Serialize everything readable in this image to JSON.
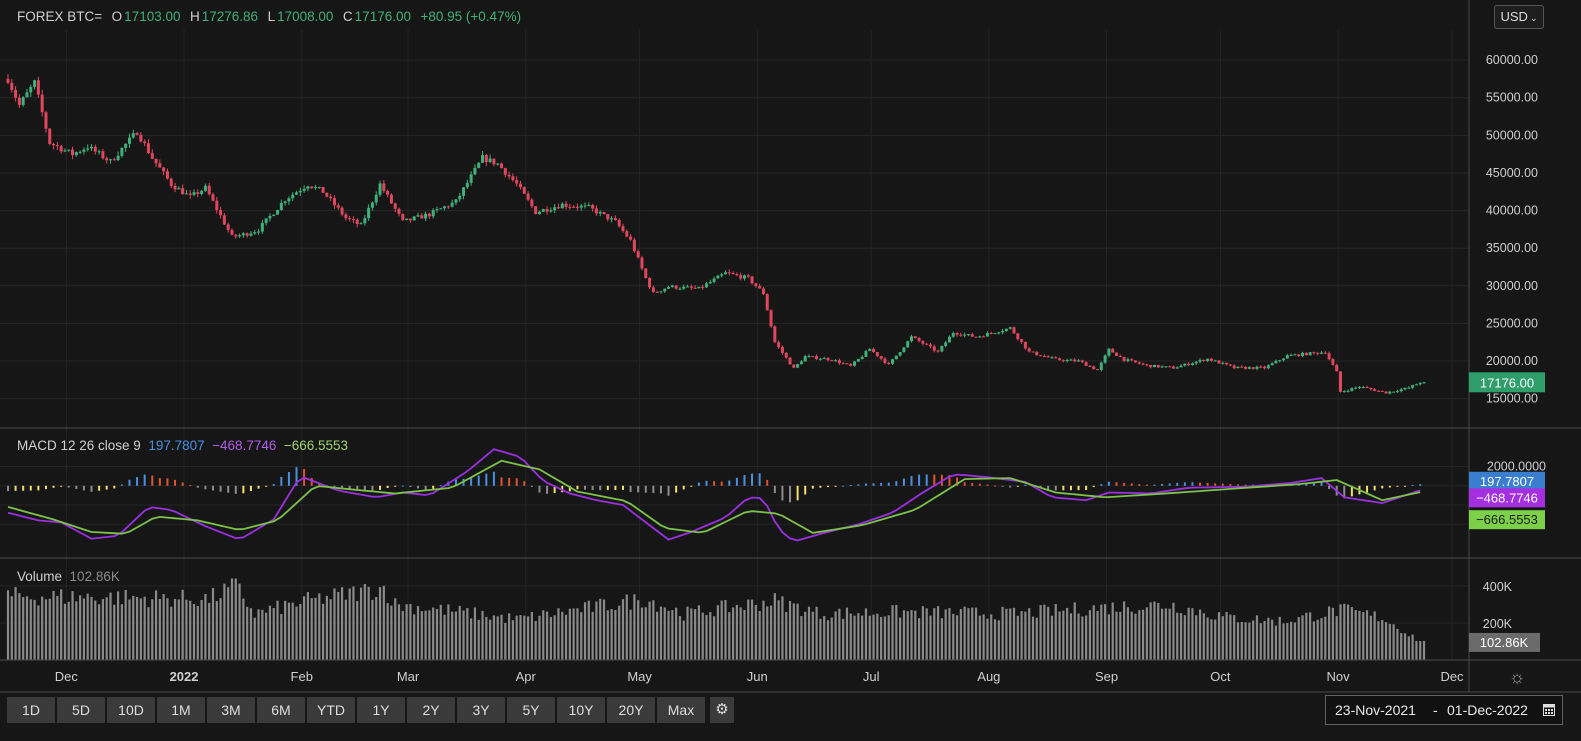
{
  "header": {
    "symbol": "FOREX BTC=",
    "o_label": "O",
    "o_value": "17103.00",
    "h_label": "H",
    "h_value": "17276.86",
    "l_label": "L",
    "l_value": "17008.00",
    "c_label": "C",
    "c_value": "17176.00",
    "change": "+80.95 (+0.47%)"
  },
  "currency_select": "USD",
  "macd": {
    "label": "MACD 12 26 close 9",
    "histogram": "197.7807",
    "macd_line": "−468.7746",
    "signal": "−666.5553"
  },
  "volume": {
    "label": "Volume",
    "value": "102.86K"
  },
  "colors": {
    "background": "#161616",
    "up": "#3fb07a",
    "down": "#e0475f",
    "macd_line": "#9b30e0",
    "signal_line": "#7cc24a",
    "hist_blue": "#4a90e2",
    "hist_red": "#e0542e",
    "hist_yellow": "#f3df6b",
    "hist_grey": "#8c8c8c",
    "volume_bar": "#8a8a8a"
  },
  "periods": [
    "1D",
    "5D",
    "10D",
    "1M",
    "3M",
    "6M",
    "YTD",
    "1Y",
    "2Y",
    "3Y",
    "5Y",
    "10Y",
    "20Y",
    "Max"
  ],
  "date_range": {
    "from": "23-Nov-2021",
    "sep": "-",
    "to": "01-Dec-2022"
  },
  "icons": {
    "settings": "gear-icon",
    "calendar": "calendar-icon",
    "chart_settings": "gear-icon"
  },
  "chart_data": [
    {
      "type": "candlestick",
      "title": "FOREX BTC=",
      "x_range": [
        "2021-11-23",
        "2022-12-01"
      ],
      "x_ticks": [
        "Dec",
        "2022",
        "Feb",
        "Mar",
        "Apr",
        "May",
        "Jun",
        "Jul",
        "Aug",
        "Sep",
        "Oct",
        "Nov",
        "Dec"
      ],
      "y_ticks": [
        "60000.00",
        "55000.00",
        "50000.00",
        "45000.00",
        "40000.00",
        "35000.00",
        "30000.00",
        "25000.00",
        "20000.00",
        "15000.00"
      ],
      "y_range": [
        11500,
        64000
      ],
      "last_price_label": "17176.00",
      "close_path": [
        [
          "2021-11-23",
          57500
        ],
        [
          "2021-11-26",
          54000
        ],
        [
          "2021-11-30",
          57000
        ],
        [
          "2021-12-04",
          49000
        ],
        [
          "2021-12-10",
          47500
        ],
        [
          "2021-12-14",
          48500
        ],
        [
          "2021-12-20",
          46500
        ],
        [
          "2021-12-27",
          50500
        ],
        [
          "2021-12-31",
          47000
        ],
        [
          "2022-01-05",
          43500
        ],
        [
          "2022-01-10",
          41800
        ],
        [
          "2022-01-14",
          43000
        ],
        [
          "2022-01-21",
          36500
        ],
        [
          "2022-01-24",
          36800
        ],
        [
          "2022-01-28",
          37500
        ],
        [
          "2022-02-04",
          41500
        ],
        [
          "2022-02-10",
          43500
        ],
        [
          "2022-02-14",
          42500
        ],
        [
          "2022-02-20",
          39000
        ],
        [
          "2022-02-24",
          38000
        ],
        [
          "2022-03-01",
          43500
        ],
        [
          "2022-03-07",
          38500
        ],
        [
          "2022-03-14",
          39500
        ],
        [
          "2022-03-21",
          41200
        ],
        [
          "2022-03-28",
          47000
        ],
        [
          "2022-04-01",
          46200
        ],
        [
          "2022-04-06",
          43500
        ],
        [
          "2022-04-11",
          39800
        ],
        [
          "2022-04-18",
          40800
        ],
        [
          "2022-04-25",
          40400
        ],
        [
          "2022-05-02",
          38500
        ],
        [
          "2022-05-06",
          36000
        ],
        [
          "2022-05-10",
          31000
        ],
        [
          "2022-05-12",
          29000
        ],
        [
          "2022-05-16",
          29900
        ],
        [
          "2022-05-24",
          29600
        ],
        [
          "2022-05-31",
          31700
        ],
        [
          "2022-06-06",
          31000
        ],
        [
          "2022-06-10",
          29000
        ],
        [
          "2022-06-13",
          22500
        ],
        [
          "2022-06-18",
          19000
        ],
        [
          "2022-06-21",
          20600
        ],
        [
          "2022-06-28",
          20200
        ],
        [
          "2022-07-03",
          19300
        ],
        [
          "2022-07-08",
          21600
        ],
        [
          "2022-07-13",
          19500
        ],
        [
          "2022-07-19",
          23200
        ],
        [
          "2022-07-26",
          21200
        ],
        [
          "2022-07-30",
          23800
        ],
        [
          "2022-08-05",
          23200
        ],
        [
          "2022-08-14",
          24400
        ],
        [
          "2022-08-19",
          21200
        ],
        [
          "2022-08-26",
          20200
        ],
        [
          "2022-09-01",
          20000
        ],
        [
          "2022-09-06",
          18800
        ],
        [
          "2022-09-09",
          21500
        ],
        [
          "2022-09-13",
          20200
        ],
        [
          "2022-09-19",
          19400
        ],
        [
          "2022-09-26",
          19100
        ],
        [
          "2022-10-05",
          20300
        ],
        [
          "2022-10-12",
          19100
        ],
        [
          "2022-10-20",
          19100
        ],
        [
          "2022-10-26",
          20700
        ],
        [
          "2022-11-05",
          21200
        ],
        [
          "2022-11-08",
          18500
        ],
        [
          "2022-11-09",
          15900
        ],
        [
          "2022-11-14",
          16600
        ],
        [
          "2022-11-21",
          15800
        ],
        [
          "2022-11-27",
          16450
        ],
        [
          "2022-11-30",
          17176
        ]
      ]
    },
    {
      "type": "line",
      "title": "MACD 12 26 close 9",
      "y_ticks": [
        "2000.0000"
      ],
      "y_range": [
        -7300,
        5800
      ],
      "series": [
        {
          "name": "MACD",
          "last": -468.7746,
          "values": [
            [
              "2021-11-23",
              -2800
            ],
            [
              "2021-12-01",
              -3600
            ],
            [
              "2021-12-07",
              -3800
            ],
            [
              "2021-12-15",
              -5500
            ],
            [
              "2021-12-22",
              -5200
            ],
            [
              "2021-12-30",
              -2200
            ],
            [
              "2022-01-05",
              -2500
            ],
            [
              "2022-01-14",
              -4200
            ],
            [
              "2022-01-23",
              -5600
            ],
            [
              "2022-02-01",
              -3500
            ],
            [
              "2022-02-08",
              1000
            ],
            [
              "2022-02-18",
              -500
            ],
            [
              "2022-02-28",
              -1200
            ],
            [
              "2022-03-07",
              -700
            ],
            [
              "2022-03-14",
              -1000
            ],
            [
              "2022-03-24",
              1500
            ],
            [
              "2022-03-31",
              3800
            ],
            [
              "2022-04-07",
              3000
            ],
            [
              "2022-04-13",
              500
            ],
            [
              "2022-04-20",
              -800
            ],
            [
              "2022-04-27",
              -1500
            ],
            [
              "2022-05-04",
              -2000
            ],
            [
              "2022-05-10",
              -3800
            ],
            [
              "2022-05-16",
              -5600
            ],
            [
              "2022-05-22",
              -4800
            ],
            [
              "2022-05-31",
              -3300
            ],
            [
              "2022-06-06",
              -1200
            ],
            [
              "2022-06-10",
              -1300
            ],
            [
              "2022-06-14",
              -4500
            ],
            [
              "2022-06-18",
              -5800
            ],
            [
              "2022-06-25",
              -5000
            ],
            [
              "2022-07-05",
              -4000
            ],
            [
              "2022-07-14",
              -2800
            ],
            [
              "2022-07-22",
              -700
            ],
            [
              "2022-07-30",
              1200
            ],
            [
              "2022-08-08",
              900
            ],
            [
              "2022-08-18",
              400
            ],
            [
              "2022-08-25",
              -1200
            ],
            [
              "2022-09-03",
              -1500
            ],
            [
              "2022-09-09",
              -700
            ],
            [
              "2022-09-20",
              -800
            ],
            [
              "2022-09-30",
              -200
            ],
            [
              "2022-10-15",
              -100
            ],
            [
              "2022-10-27",
              300
            ],
            [
              "2022-11-04",
              800
            ],
            [
              "2022-11-10",
              -1200
            ],
            [
              "2022-11-20",
              -1800
            ],
            [
              "2022-11-30",
              -469
            ]
          ]
        },
        {
          "name": "Signal",
          "last": -666.5553,
          "values": [
            [
              "2021-11-23",
              -2200
            ],
            [
              "2021-12-05",
              -3500
            ],
            [
              "2021-12-15",
              -4800
            ],
            [
              "2021-12-24",
              -5000
            ],
            [
              "2022-01-01",
              -3200
            ],
            [
              "2022-01-12",
              -3600
            ],
            [
              "2022-01-23",
              -4600
            ],
            [
              "2022-02-02",
              -3600
            ],
            [
              "2022-02-12",
              0
            ],
            [
              "2022-02-22",
              -400
            ],
            [
              "2022-03-05",
              -800
            ],
            [
              "2022-03-20",
              -200
            ],
            [
              "2022-04-02",
              2600
            ],
            [
              "2022-04-12",
              1700
            ],
            [
              "2022-04-22",
              -600
            ],
            [
              "2022-05-05",
              -1600
            ],
            [
              "2022-05-15",
              -4400
            ],
            [
              "2022-05-25",
              -4900
            ],
            [
              "2022-06-06",
              -2600
            ],
            [
              "2022-06-14",
              -2900
            ],
            [
              "2022-06-23",
              -4900
            ],
            [
              "2022-07-06",
              -4100
            ],
            [
              "2022-07-20",
              -2500
            ],
            [
              "2022-08-02",
              700
            ],
            [
              "2022-08-14",
              800
            ],
            [
              "2022-08-26",
              -700
            ],
            [
              "2022-09-08",
              -1200
            ],
            [
              "2022-09-24",
              -800
            ],
            [
              "2022-10-12",
              -300
            ],
            [
              "2022-10-30",
              200
            ],
            [
              "2022-11-08",
              600
            ],
            [
              "2022-11-20",
              -1500
            ],
            [
              "2022-11-30",
              -667
            ]
          ]
        }
      ],
      "histogram_last": 197.7807,
      "value_labels": [
        "197.7807",
        "−468.7746",
        "−666.5553"
      ]
    },
    {
      "type": "bar",
      "title": "Volume",
      "y_ticks": [
        "400K",
        "200K"
      ],
      "y_range": [
        0,
        540000
      ],
      "last_label": "102.86K",
      "daily_volume_profile": [
        [
          "2021-11-23",
          345000
        ],
        [
          "2021-12-15",
          340000
        ],
        [
          "2022-01-15",
          330000
        ],
        [
          "2022-01-22",
          400000
        ],
        [
          "2022-01-27",
          250000
        ],
        [
          "2022-02-10",
          320000
        ],
        [
          "2022-03-02",
          390000
        ],
        [
          "2022-03-05",
          300000
        ],
        [
          "2022-03-18",
          270000
        ],
        [
          "2022-04-06",
          220000
        ],
        [
          "2022-05-10",
          330000
        ],
        [
          "2022-05-20",
          250000
        ],
        [
          "2022-06-13",
          320000
        ],
        [
          "2022-06-25",
          250000
        ],
        [
          "2022-07-15",
          260000
        ],
        [
          "2022-08-15",
          250000
        ],
        [
          "2022-09-09",
          285000
        ],
        [
          "2022-09-25",
          300000
        ],
        [
          "2022-10-10",
          230000
        ],
        [
          "2022-10-25",
          210000
        ],
        [
          "2022-11-09",
          270000
        ],
        [
          "2022-11-20",
          230000
        ],
        [
          "2022-11-30",
          102860
        ]
      ]
    }
  ]
}
